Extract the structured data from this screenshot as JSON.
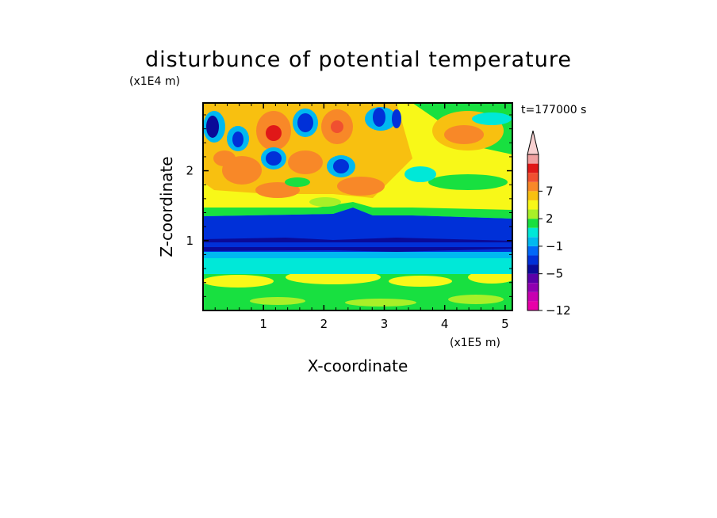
{
  "chart_data": {
    "type": "heatmap",
    "title": "disturbunce of potential temperature",
    "xlabel": "X-coordinate",
    "ylabel": "Z-coordinate",
    "x_unit": "(x1E5 m)",
    "y_unit": "(x1E4 m)",
    "time_label": "t=177000 s",
    "xlim": [
      0,
      5.12
    ],
    "ylim": [
      0,
      2.97
    ],
    "x_ticks": [
      1,
      2,
      3,
      4,
      5
    ],
    "y_ticks": [
      1,
      2
    ],
    "colorbar": {
      "levels": [
        -12,
        -10,
        -8,
        -6,
        -5,
        -3,
        -2,
        -1,
        0,
        1,
        2,
        3,
        5,
        7,
        8,
        10
      ],
      "colors": [
        "#e800a8",
        "#c800b0",
        "#9000b0",
        "#5a00a8",
        "#0a0a98",
        "#0030d8",
        "#0068f8",
        "#00b8f0",
        "#00e8d8",
        "#18e040",
        "#a8f028",
        "#f8f818",
        "#f8c010",
        "#f88828",
        "#f05030",
        "#e01818",
        "#f0a0a0",
        "#f8d0d0"
      ],
      "labels": [
        "7",
        "2",
        "-1",
        "-5",
        "-12"
      ]
    }
  }
}
